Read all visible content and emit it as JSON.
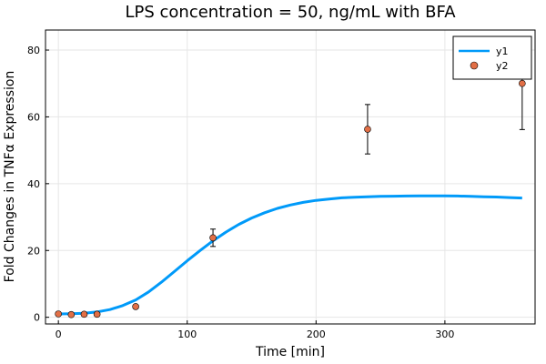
{
  "chart_data": {
    "type": "scatter",
    "title": "LPS concentration = 50, ng/mL with BFA",
    "xlabel": "Time [min]",
    "ylabel": "Fold Changes in TNFα Expression",
    "xlim": [
      -10,
      370
    ],
    "ylim": [
      -2,
      86
    ],
    "x_ticks": [
      0,
      100,
      200,
      300
    ],
    "y_ticks": [
      0,
      20,
      40,
      60,
      80
    ],
    "grid": true,
    "legend_position": "top-right",
    "series": [
      {
        "name": "y1",
        "type": "line",
        "color": "#009af9",
        "x": [
          0,
          10,
          20,
          30,
          40,
          50,
          60,
          70,
          80,
          90,
          100,
          110,
          120,
          130,
          140,
          150,
          160,
          170,
          180,
          190,
          200,
          210,
          220,
          230,
          240,
          250,
          260,
          270,
          280,
          290,
          300,
          310,
          320,
          330,
          340,
          350,
          360
        ],
        "y": [
          1,
          1.05,
          1.2,
          1.6,
          2.3,
          3.5,
          5.2,
          7.6,
          10.5,
          13.7,
          16.9,
          20.0,
          22.9,
          25.5,
          27.8,
          29.7,
          31.3,
          32.6,
          33.6,
          34.4,
          35.0,
          35.4,
          35.75,
          35.95,
          36.1,
          36.2,
          36.25,
          36.3,
          36.32,
          36.33,
          36.32,
          36.3,
          36.2,
          36.1,
          36.0,
          35.85,
          35.7
        ]
      },
      {
        "name": "y2",
        "type": "scatter",
        "color": "#e26f46",
        "x": [
          0,
          10,
          20,
          30,
          60,
          120,
          240,
          360
        ],
        "y": [
          1,
          0.8,
          0.9,
          0.9,
          3.2,
          23.8,
          56.3,
          70
        ],
        "err": [
          0.3,
          0.3,
          0.3,
          0.3,
          0.5,
          2.6,
          7.4,
          13.8
        ]
      }
    ]
  }
}
